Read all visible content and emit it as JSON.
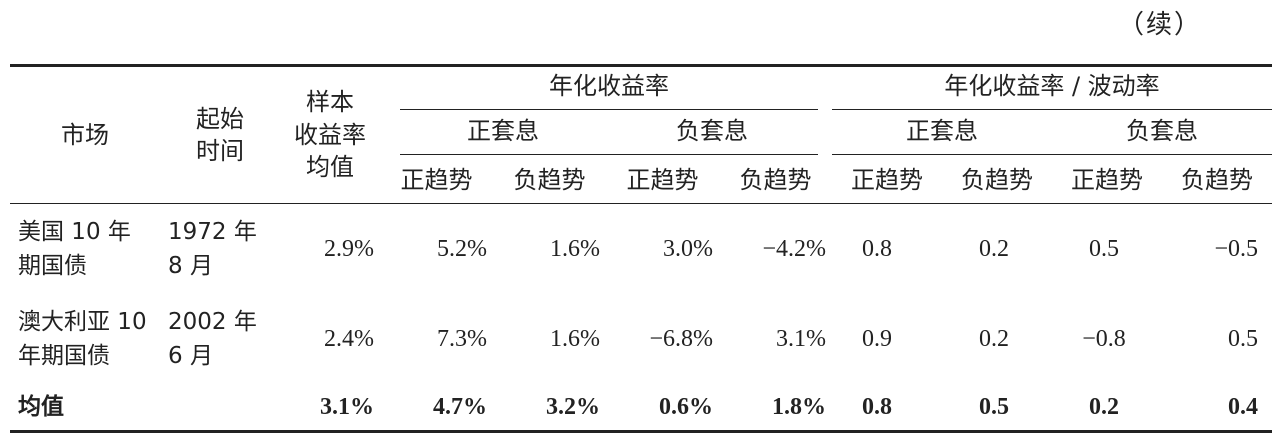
{
  "continued": "（续）",
  "headers": {
    "market": "市场",
    "start": "起始\n时间",
    "sample_mean": "样本\n收益率\n均值",
    "annual_return": "年化收益率",
    "annual_return_vol": "年化收益率 / 波动率",
    "pos_carry": "正套息",
    "neg_carry": "负套息",
    "pos_trend": "正趋势",
    "neg_trend": "负趋势"
  },
  "rows": [
    {
      "market": "美国 10 年\n期国债",
      "start": "1972 年\n8 月",
      "values": [
        "2.9%",
        "5.2%",
        "1.6%",
        "3.0%",
        "−4.2%",
        "0.8",
        "0.2",
        "0.5",
        "−0.5"
      ]
    },
    {
      "market": "澳大利亚 10\n年期国债",
      "start": "2002 年\n6 月",
      "values": [
        "2.4%",
        "7.3%",
        "1.6%",
        "−6.8%",
        "3.1%",
        "0.9",
        "0.2",
        "−0.8",
        "0.5"
      ]
    },
    {
      "market": "均值",
      "start": "",
      "values": [
        "3.1%",
        "4.7%",
        "3.2%",
        "0.6%",
        "1.8%",
        "0.8",
        "0.5",
        "0.2",
        "0.4"
      ]
    }
  ]
}
